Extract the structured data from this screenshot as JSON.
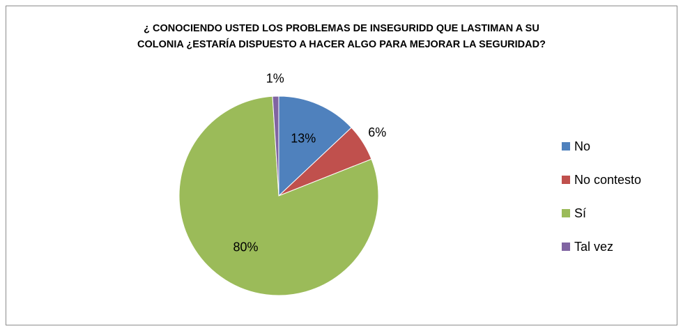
{
  "chart_data": {
    "type": "pie",
    "title": "¿ CONOCIENDO USTED LOS PROBLEMAS DE INSEGURIDD QUE LASTIMAN A SU\nCOLONIA ¿ESTARÍA DISPUESTO A HACER ALGO PARA MEJORAR LA SEGURIDAD?",
    "categories": [
      "No",
      "No contesto",
      "Sí",
      "Tal vez"
    ],
    "values": [
      13,
      6,
      80,
      1
    ],
    "value_labels": [
      "13%",
      "6%",
      "80%",
      "1%"
    ],
    "colors": [
      "#4f81bd",
      "#c0504d",
      "#9bbb59",
      "#8064a2"
    ],
    "legend": "right"
  }
}
